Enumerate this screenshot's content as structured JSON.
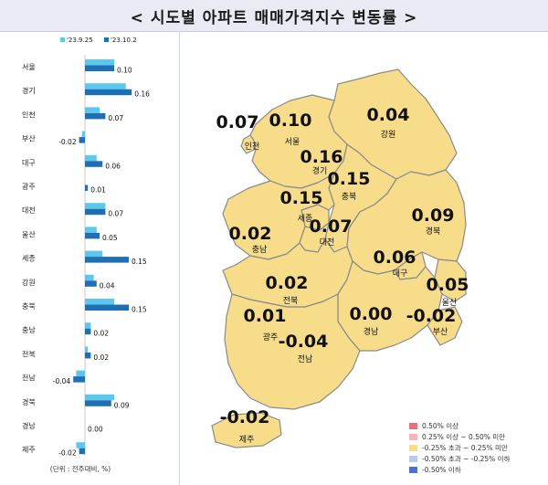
{
  "title": "< 시도별 아파트 매매가격지수 변동률 >",
  "chart_data": {
    "type": "bar",
    "orientation": "horizontal",
    "categories": [
      "서울",
      "경기",
      "인천",
      "부산",
      "대구",
      "광주",
      "대전",
      "울산",
      "세종",
      "강원",
      "충북",
      "충남",
      "전북",
      "전남",
      "경북",
      "경남",
      "제주"
    ],
    "series": [
      {
        "name": "'23.9.25",
        "color": "#5bc8ef",
        "values": [
          0.1,
          0.14,
          0.05,
          -0.01,
          0.04,
          0.0,
          0.07,
          0.04,
          0.06,
          0.03,
          0.1,
          0.02,
          0.01,
          -0.03,
          0.1,
          0.0,
          -0.03
        ]
      },
      {
        "name": "'23.10.2",
        "color": "#1f6fb5",
        "values": [
          0.1,
          0.16,
          0.07,
          -0.02,
          0.06,
          0.01,
          0.07,
          0.05,
          0.15,
          0.04,
          0.15,
          0.02,
          0.02,
          -0.04,
          0.09,
          0.0,
          -0.02
        ]
      }
    ],
    "value_labels": [
      "0.10",
      "0.16",
      "0.07",
      "-0.02",
      "0.06",
      "0.01",
      "0.07",
      "0.05",
      "0.15",
      "0.04",
      "0.15",
      "0.02",
      "0.02",
      "-0.04",
      "0.09",
      "0.00",
      "-0.02"
    ],
    "note": "(단위 : 전주대비, %)"
  },
  "map": {
    "regions": [
      {
        "name": "인천",
        "value": "0.07"
      },
      {
        "name": "서울",
        "value": "0.10"
      },
      {
        "name": "강원",
        "value": "0.04"
      },
      {
        "name": "경기",
        "value": "0.16"
      },
      {
        "name": "충북",
        "value": "0.15"
      },
      {
        "name": "세종",
        "value": "0.15"
      },
      {
        "name": "충남",
        "value": "0.02"
      },
      {
        "name": "대전",
        "value": "0.07"
      },
      {
        "name": "경북",
        "value": "0.09"
      },
      {
        "name": "대구",
        "value": "0.06"
      },
      {
        "name": "울산",
        "value": "0.05"
      },
      {
        "name": "전북",
        "value": "0.02"
      },
      {
        "name": "광주",
        "value": "0.01"
      },
      {
        "name": "경남",
        "value": "0.00"
      },
      {
        "name": "부산",
        "value": "-0.02"
      },
      {
        "name": "전남",
        "value": "-0.04"
      },
      {
        "name": "제주",
        "value": "-0.02"
      }
    ],
    "fill_color": "#f7dd8a",
    "border_color": "#8a8a8a"
  },
  "legend": [
    {
      "label": "0.50% 이상",
      "color": "#e8707a"
    },
    {
      "label": "0.25% 이상 ~ 0.50% 미만",
      "color": "#f4b6bb"
    },
    {
      "label": "-0.25% 초과 ~ 0.25% 미만",
      "color": "#f7dd8a"
    },
    {
      "label": "-0.50% 초과 ~ -0.25% 이하",
      "color": "#b7c9ee"
    },
    {
      "label": "-0.50% 이하",
      "color": "#4a73c9"
    }
  ]
}
